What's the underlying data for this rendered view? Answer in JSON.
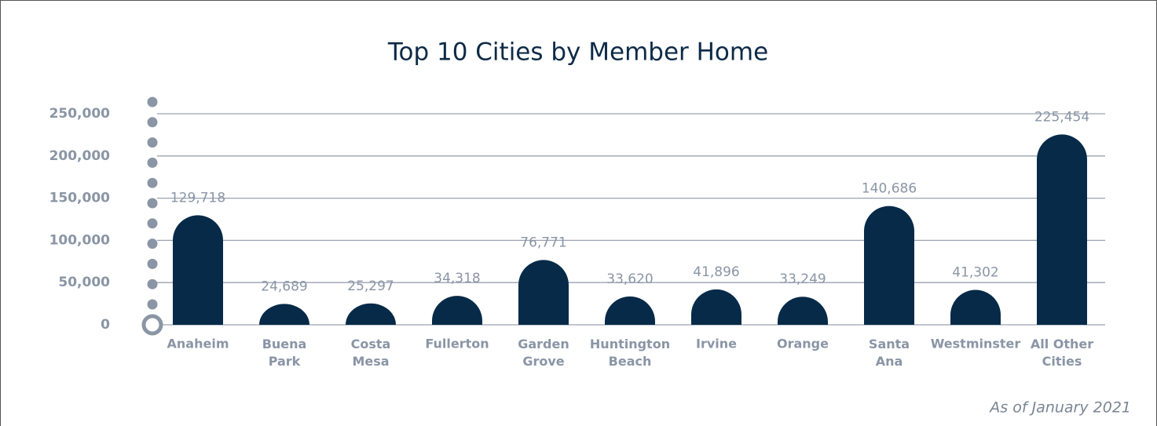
{
  "chart_data": {
    "type": "bar",
    "title": "Top 10 Cities by Member Home",
    "subtitle": "As of January 2021",
    "categories": [
      "Anaheim",
      "Buena Park",
      "Costa Mesa",
      "Fullerton",
      "Garden Grove",
      "Huntington Beach",
      "Irvine",
      "Orange",
      "Santa Ana",
      "Westminster",
      "All Other Cities"
    ],
    "values": [
      129718,
      24689,
      25297,
      34318,
      76771,
      33620,
      41896,
      33249,
      140686,
      41302,
      225454
    ],
    "value_labels": [
      "129,718",
      "24,689",
      "25,297",
      "34,318",
      "76,771",
      "33,620",
      "41,896",
      "33,249",
      "140,686",
      "41,302",
      "225,454"
    ],
    "color": "#062a48",
    "ylim": [
      0,
      250000
    ],
    "yticks": [
      0,
      {
        "value": 50000,
        "label": "50,000"
      },
      {
        "value": 100000,
        "label": "100,000"
      },
      {
        "value": 150000,
        "label": "150,000"
      },
      {
        "value": 200000,
        "label": "200,000"
      },
      {
        "value": 250000,
        "label": "250,000"
      }
    ],
    "grid": true
  }
}
